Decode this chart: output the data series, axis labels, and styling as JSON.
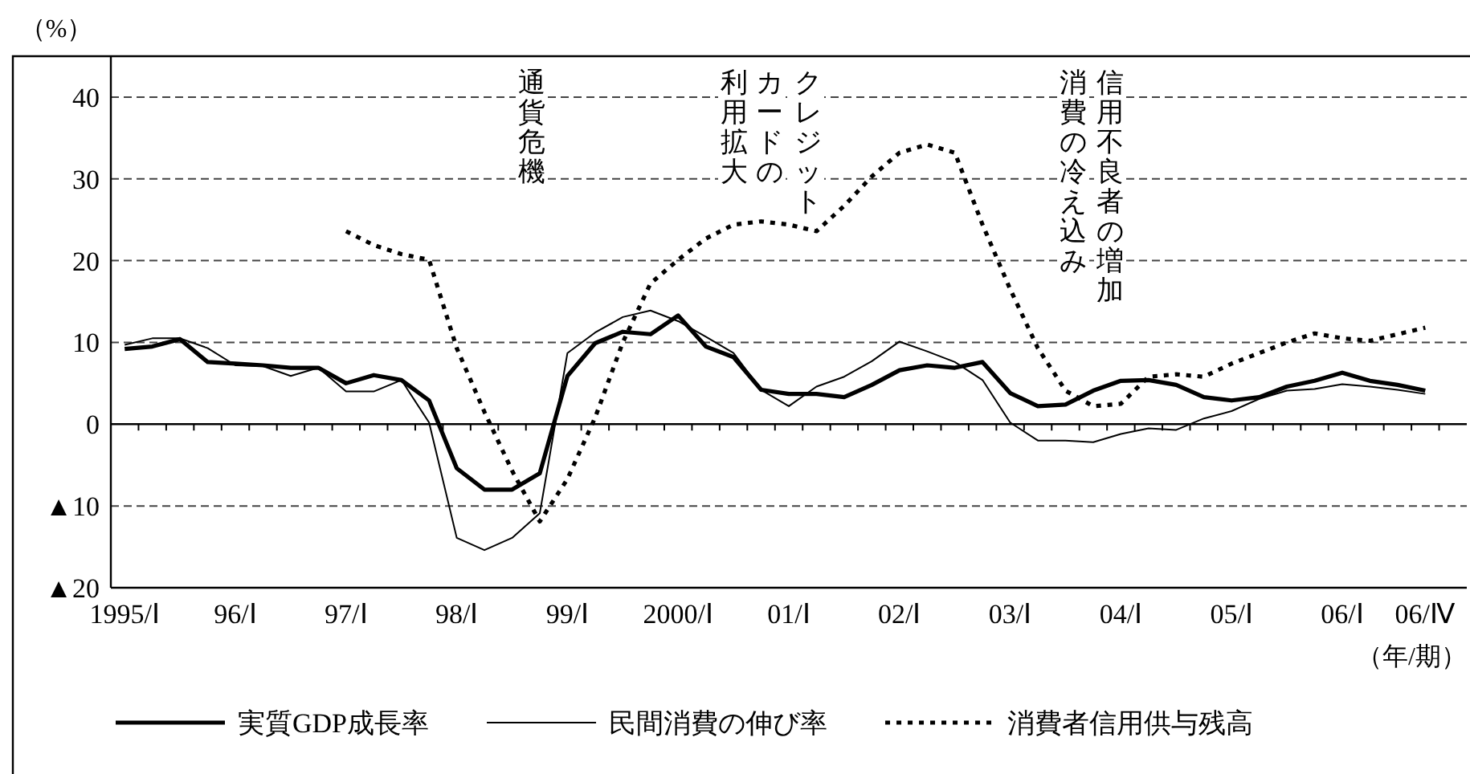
{
  "chart_data": {
    "type": "line",
    "ylabel": "（%）",
    "xlabel": "（年/期）",
    "categories": [
      "1995/Ⅰ",
      null,
      null,
      null,
      "96/Ⅰ",
      null,
      null,
      null,
      "97/Ⅰ",
      null,
      null,
      null,
      "98/Ⅰ",
      null,
      null,
      null,
      "99/Ⅰ",
      null,
      null,
      null,
      "2000/Ⅰ",
      null,
      null,
      null,
      "01/Ⅰ",
      null,
      null,
      null,
      "02/Ⅰ",
      null,
      null,
      null,
      "03/Ⅰ",
      null,
      null,
      null,
      "04/Ⅰ",
      null,
      null,
      null,
      "05/Ⅰ",
      null,
      null,
      null,
      "06/Ⅰ",
      null,
      null,
      "06/Ⅳ"
    ],
    "ylim": [
      -20,
      45
    ],
    "yticks": [
      40,
      30,
      20,
      10,
      0,
      {
        "value": -10,
        "label": "▲10"
      },
      {
        "value": -20,
        "label": "▲20"
      }
    ],
    "grid": "y",
    "legend": "bottom",
    "series": [
      {
        "name": "実質GDP成長率",
        "color": "#000000",
        "line_style": "solid",
        "values": [
          9.2,
          9.5,
          10.4,
          7.6,
          7.4,
          7.2,
          6.9,
          6.9,
          5.0,
          6.0,
          5.4,
          2.9,
          -5.4,
          -8.0,
          -8.0,
          -6.0,
          5.9,
          9.9,
          11.3,
          11.0,
          13.3,
          9.5,
          8.2,
          4.2,
          3.7,
          3.7,
          3.3,
          4.8,
          6.6,
          7.2,
          6.9,
          7.6,
          3.8,
          2.2,
          2.4,
          4.1,
          5.3,
          5.4,
          4.8,
          3.3,
          2.9,
          3.3,
          4.6,
          5.3,
          6.3,
          5.3,
          4.8,
          4.1
        ]
      },
      {
        "name": "民間消費の伸び率",
        "color": "#000000",
        "line_style": "solid",
        "values": [
          9.7,
          10.5,
          10.5,
          9.3,
          7.2,
          7.1,
          5.9,
          6.9,
          4.0,
          4.0,
          5.4,
          0.2,
          -13.9,
          -15.4,
          -13.9,
          -10.9,
          8.7,
          11.2,
          13.1,
          13.9,
          12.6,
          10.7,
          8.7,
          4.2,
          2.2,
          4.6,
          5.8,
          7.7,
          10.1,
          8.9,
          7.6,
          5.4,
          0.2,
          -2.0,
          -2.0,
          -2.2,
          -1.2,
          -0.5,
          -0.7,
          0.7,
          1.6,
          3.1,
          4.1,
          4.3,
          4.9,
          4.6,
          4.2,
          3.7
        ]
      },
      {
        "name": "消費者信用供与残高",
        "color": "#000000",
        "line_style": "dotted",
        "values": [
          null,
          null,
          null,
          null,
          null,
          null,
          null,
          null,
          23.6,
          21.9,
          20.8,
          20.1,
          9.3,
          1.5,
          -5.7,
          -11.9,
          -6.7,
          0.8,
          10.0,
          17.2,
          20.1,
          22.7,
          24.4,
          24.8,
          24.4,
          23.6,
          26.7,
          30.3,
          33.2,
          34.2,
          33.2,
          24.4,
          16.5,
          9.3,
          4.1,
          2.2,
          2.5,
          5.8,
          6.1,
          5.8,
          7.4,
          8.7,
          10.0,
          11.1,
          10.5,
          10.2,
          11.0,
          11.8
        ]
      }
    ],
    "annotations": [
      "通貨危機",
      "クレジット",
      "カードの",
      "利用拡大",
      "信用不良者の増加",
      "消費の冷え込み"
    ]
  }
}
